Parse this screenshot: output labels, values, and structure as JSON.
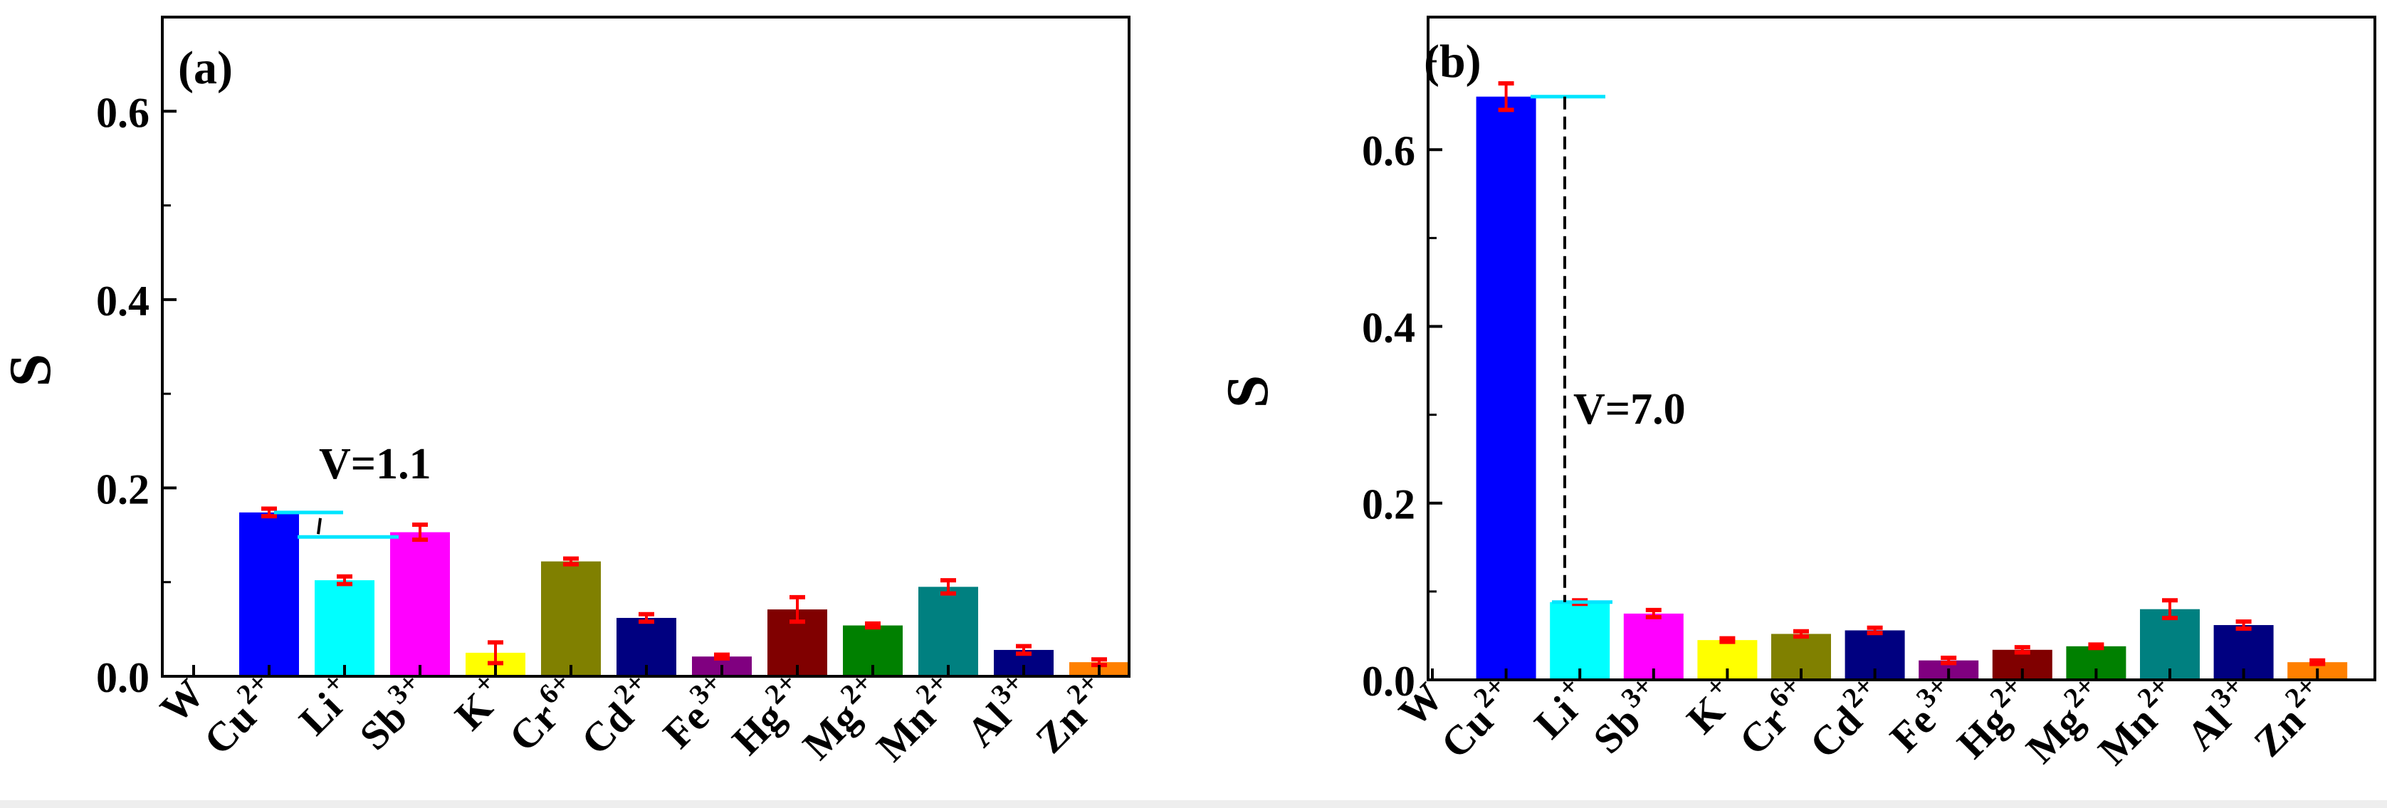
{
  "chart_data": [
    {
      "type": "bar",
      "panel_label": "(a)",
      "ylabel": "S",
      "xlabel": "",
      "ylim": [
        0,
        0.7
      ],
      "yticks": [
        "0.0",
        "0.2",
        "0.4",
        "0.6"
      ],
      "ytick_values": [
        0,
        0.2,
        0.4,
        0.6
      ],
      "categories": [
        {
          "base": "W",
          "sup": ""
        },
        {
          "base": "Cu",
          "sup": "2+"
        },
        {
          "base": "Li",
          "sup": "+"
        },
        {
          "base": "Sb",
          "sup": "3+"
        },
        {
          "base": "K",
          "sup": "+"
        },
        {
          "base": "Cr",
          "sup": "6+"
        },
        {
          "base": "Cd",
          "sup": "2+"
        },
        {
          "base": "Fe",
          "sup": "3+"
        },
        {
          "base": "Hg",
          "sup": "2+"
        },
        {
          "base": "Mg",
          "sup": "2+"
        },
        {
          "base": "Mn",
          "sup": "2+"
        },
        {
          "base": "Al",
          "sup": "3+"
        },
        {
          "base": "Zn",
          "sup": "2+"
        }
      ],
      "values": [
        0,
        0.174,
        0.102,
        0.153,
        0.025,
        0.122,
        0.062,
        0.021,
        0.071,
        0.054,
        0.095,
        0.028,
        0.015
      ],
      "errors": [
        0,
        0.004,
        0.004,
        0.008,
        0.011,
        0.003,
        0.004,
        0.002,
        0.013,
        0.002,
        0.007,
        0.004,
        0.003
      ],
      "colors": [
        "#ffffff",
        "#0000ff",
        "#00ffff",
        "#ff00ff",
        "#ffff00",
        "#808000",
        "#000080",
        "#800080",
        "#800000",
        "#008000",
        "#008080",
        "#000080",
        "#ff8000"
      ],
      "annotation": {
        "text": "V=1.1",
        "upper": 0.174,
        "lower": 0.148,
        "color": "#00e5ff"
      }
    },
    {
      "type": "bar",
      "panel_label": "(b)",
      "ylabel": "S",
      "xlabel": "",
      "ylim": [
        0,
        0.75
      ],
      "yticks": [
        "0.0",
        "0.2",
        "0.4",
        "0.6"
      ],
      "ytick_values": [
        0,
        0.2,
        0.4,
        0.6
      ],
      "categories": [
        {
          "base": "W",
          "sup": ""
        },
        {
          "base": "Cu",
          "sup": "2+"
        },
        {
          "base": "Li",
          "sup": "+"
        },
        {
          "base": "Sb",
          "sup": "3+"
        },
        {
          "base": "K",
          "sup": "+"
        },
        {
          "base": "Cr",
          "sup": "6+"
        },
        {
          "base": "Cd",
          "sup": "2+"
        },
        {
          "base": "Fe",
          "sup": "3+"
        },
        {
          "base": "Hg",
          "sup": "2+"
        },
        {
          "base": "Mg",
          "sup": "2+"
        },
        {
          "base": "Mn",
          "sup": "2+"
        },
        {
          "base": "Al",
          "sup": "3+"
        },
        {
          "base": "Zn",
          "sup": "2+"
        }
      ],
      "values": [
        0,
        0.66,
        0.088,
        0.075,
        0.045,
        0.052,
        0.056,
        0.022,
        0.034,
        0.038,
        0.08,
        0.062,
        0.02
      ],
      "errors": [
        0,
        0.015,
        0.002,
        0.004,
        0.002,
        0.003,
        0.003,
        0.003,
        0.003,
        0.002,
        0.01,
        0.004,
        0.002
      ],
      "colors": [
        "#ffffff",
        "#0000ff",
        "#00ffff",
        "#ff00ff",
        "#ffff00",
        "#808000",
        "#000080",
        "#800080",
        "#800000",
        "#008000",
        "#008080",
        "#000080",
        "#ff8000"
      ],
      "annotation": {
        "text": "V=7.0",
        "upper": 0.66,
        "lower": 0.088,
        "color": "#00e5ff"
      }
    }
  ]
}
